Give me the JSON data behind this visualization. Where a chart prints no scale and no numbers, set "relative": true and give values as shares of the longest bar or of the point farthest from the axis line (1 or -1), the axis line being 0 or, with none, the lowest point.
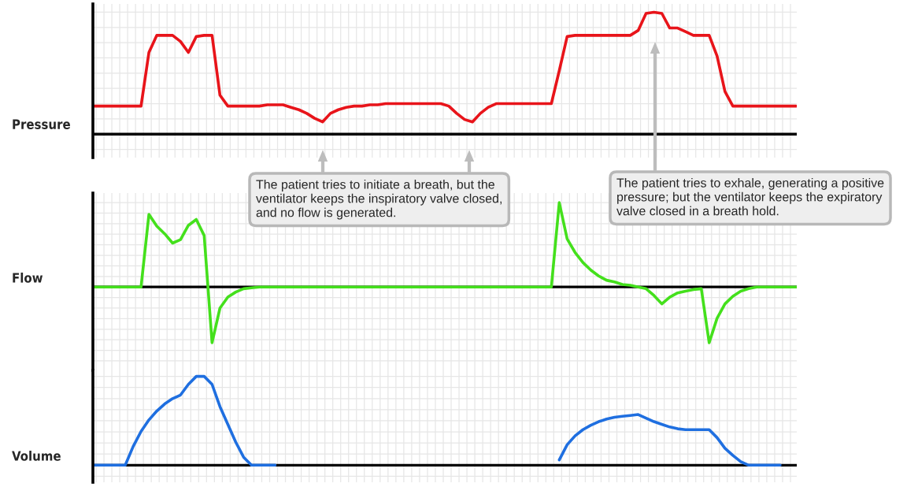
{
  "chart_data": [
    {
      "type": "line",
      "ylabel": "Pressure",
      "relative": true,
      "grid": true,
      "categories": [
        null,
        null,
        null,
        null,
        null,
        null,
        null,
        null,
        null,
        null,
        null,
        null,
        null,
        null,
        null,
        null,
        null,
        null,
        null,
        null,
        null,
        null,
        null,
        null,
        null,
        null,
        null,
        null,
        null,
        null,
        null,
        null,
        null,
        null,
        null,
        null,
        null,
        null,
        null,
        null,
        null,
        null,
        null,
        null,
        null,
        null,
        null,
        null,
        null,
        null,
        null,
        null,
        null,
        null,
        null,
        null,
        null,
        null,
        null,
        null,
        null,
        null,
        null,
        null,
        null,
        null,
        null,
        null,
        null,
        null,
        null,
        null,
        null,
        null,
        null,
        null,
        null,
        null,
        null,
        null,
        null,
        null,
        null,
        null,
        null,
        null,
        null,
        null,
        null,
        null
      ],
      "series": [
        {
          "color": "#e8141a",
          "values": [
            0.23,
            0.23,
            0.23,
            0.23,
            0.23,
            0.23,
            0.23,
            0.67,
            0.81,
            0.81,
            0.81,
            0.76,
            0.67,
            0.8,
            0.81,
            0.81,
            0.32,
            0.23,
            0.23,
            0.23,
            0.23,
            0.23,
            0.24,
            0.24,
            0.24,
            0.22,
            0.2,
            0.17,
            0.13,
            0.1,
            0.17,
            0.2,
            0.22,
            0.23,
            0.23,
            0.24,
            0.24,
            0.25,
            0.25,
            0.25,
            0.25,
            0.25,
            0.25,
            0.25,
            0.25,
            0.23,
            0.17,
            0.12,
            0.1,
            0.17,
            0.22,
            0.25,
            0.25,
            0.25,
            0.25,
            0.25,
            0.25,
            0.25,
            0.25,
            0.52,
            0.8,
            0.81,
            0.81,
            0.81,
            0.81,
            0.81,
            0.81,
            0.81,
            0.81,
            0.85,
            0.99,
            1.0,
            0.99,
            0.87,
            0.87,
            0.84,
            0.81,
            0.81,
            0.81,
            0.64,
            0.35,
            0.23,
            0.23,
            0.23,
            0.23,
            0.23,
            0.23,
            0.23,
            0.23,
            0.23
          ]
        }
      ],
      "annotations": [
        "The patient tries to initiate a breath, but the ventilator keeps the inspiratory valve closed, and no flow is generated.",
        "The patient tries to exhale, generating a positive pressure; but the ventilator keeps the expiratory valve closed in a breath hold."
      ]
    },
    {
      "type": "line",
      "ylabel": "Flow",
      "relative": true,
      "grid": true,
      "categories": [
        null,
        null,
        null,
        null,
        null,
        null,
        null,
        null,
        null,
        null,
        null,
        null,
        null,
        null,
        null,
        null,
        null,
        null,
        null,
        null,
        null,
        null,
        null,
        null,
        null,
        null,
        null,
        null,
        null,
        null,
        null,
        null,
        null,
        null,
        null,
        null,
        null,
        null,
        null,
        null,
        null,
        null,
        null,
        null,
        null,
        null,
        null,
        null,
        null,
        null,
        null,
        null,
        null,
        null,
        null,
        null,
        null,
        null,
        null,
        null,
        null,
        null,
        null,
        null,
        null,
        null,
        null,
        null,
        null,
        null,
        null,
        null,
        null,
        null,
        null,
        null,
        null,
        null,
        null,
        null,
        null,
        null,
        null,
        null,
        null,
        null,
        null,
        null,
        null,
        null
      ],
      "series": [
        {
          "color": "#44e01c",
          "values": [
            0,
            0,
            0,
            0,
            0,
            0,
            0,
            0.86,
            0.72,
            0.63,
            0.52,
            0.56,
            0.73,
            0.8,
            0.61,
            -0.66,
            -0.25,
            -0.12,
            -0.06,
            -0.02,
            -0.01,
            0,
            0,
            0,
            0,
            0,
            0,
            0,
            0,
            0,
            0,
            0,
            0,
            0,
            0,
            0,
            0,
            0,
            0,
            0,
            0,
            0,
            0,
            0,
            0,
            0,
            0,
            0,
            0,
            0,
            0,
            0,
            0,
            0,
            0,
            0,
            0,
            0,
            0,
            1.0,
            0.57,
            0.41,
            0.29,
            0.2,
            0.13,
            0.08,
            0.06,
            0.03,
            0.02,
            0,
            -0.02,
            -0.1,
            -0.2,
            -0.12,
            -0.07,
            -0.05,
            -0.03,
            -0.02,
            -0.66,
            -0.37,
            -0.2,
            -0.11,
            -0.05,
            -0.02,
            0,
            0,
            0,
            0,
            0,
            0
          ]
        }
      ]
    },
    {
      "type": "line",
      "ylabel": "Volume",
      "relative": true,
      "grid": true,
      "categories": [
        null,
        null,
        null,
        null,
        null,
        null,
        null,
        null,
        null,
        null,
        null,
        null,
        null,
        null,
        null,
        null,
        null,
        null,
        null,
        null,
        null,
        null,
        null,
        null,
        null,
        null,
        null,
        null,
        null,
        null,
        null,
        null,
        null,
        null,
        null,
        null,
        null,
        null,
        null,
        null,
        null,
        null,
        null,
        null,
        null,
        null,
        null,
        null,
        null,
        null,
        null,
        null,
        null,
        null,
        null,
        null,
        null,
        null,
        null,
        null,
        null,
        null,
        null,
        null,
        null,
        null,
        null,
        null,
        null,
        null,
        null,
        null,
        null,
        null,
        null,
        null,
        null,
        null,
        null,
        null,
        null,
        null,
        null,
        null,
        null,
        null,
        null,
        null,
        null,
        null
      ],
      "series": [
        {
          "color": "#1f6fe0",
          "values": [
            0,
            0,
            0,
            0,
            0,
            0.21,
            0.38,
            0.51,
            0.61,
            0.69,
            0.75,
            0.79,
            0.91,
            1.0,
            1.0,
            0.91,
            0.66,
            0.46,
            0.26,
            0.09,
            0,
            0,
            0,
            0,
            null,
            null,
            null,
            null,
            null,
            null,
            null,
            null,
            null,
            null,
            null,
            null,
            null,
            null,
            null,
            null,
            null,
            null,
            null,
            null,
            null,
            null,
            null,
            null,
            null,
            null,
            null,
            null,
            null,
            null,
            null,
            null,
            null,
            null,
            null,
            null,
            null,
            null,
            null,
            null,
            null,
            null,
            null,
            null,
            null,
            null,
            null,
            null,
            null,
            null,
            null,
            null,
            null,
            null,
            null,
            null,
            null,
            null,
            null,
            null,
            null,
            null,
            null,
            null,
            null,
            null
          ]
        },
        {
          "color": "#1f6fe0",
          "values": [
            null,
            null,
            null,
            null,
            null,
            null,
            null,
            null,
            null,
            null,
            null,
            null,
            null,
            null,
            null,
            null,
            null,
            null,
            null,
            null,
            null,
            null,
            null,
            null,
            null,
            null,
            null,
            null,
            null,
            null,
            null,
            null,
            null,
            null,
            null,
            null,
            null,
            null,
            null,
            null,
            null,
            null,
            null,
            null,
            null,
            null,
            null,
            null,
            null,
            null,
            null,
            null,
            null,
            null,
            null,
            null,
            null,
            null,
            null,
            0.06,
            0.23,
            0.33,
            0.4,
            0.45,
            0.49,
            0.52,
            0.54,
            0.55,
            0.56,
            0.57,
            0.53,
            0.49,
            0.46,
            0.43,
            0.41,
            0.4,
            0.4,
            0.4,
            0.4,
            0.31,
            0.19,
            0.11,
            0.04,
            0,
            0,
            0,
            0,
            0,
            null,
            null
          ]
        }
      ]
    }
  ]
}
